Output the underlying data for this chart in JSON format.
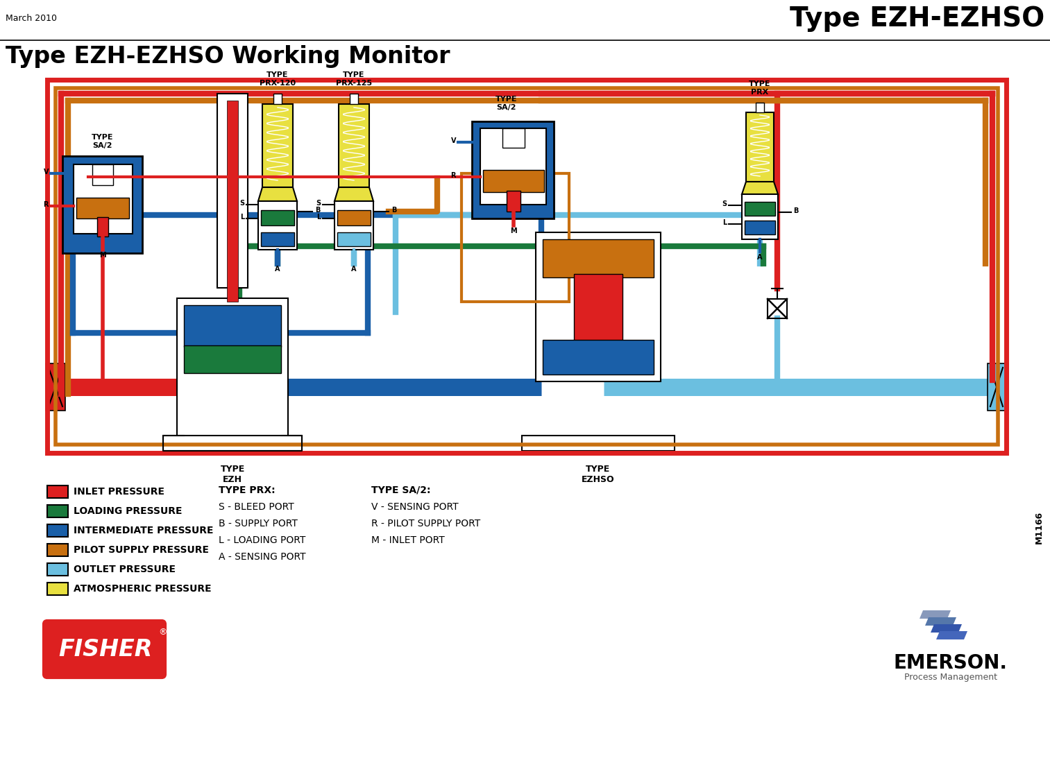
{
  "title_top_right": "Type EZH-EZHSO",
  "title_top_left": "March 2010",
  "title_main": "Type EZH-EZHSO Working Monitor",
  "bg_color": "#ffffff",
  "legend_items": [
    {
      "label": "INLET PRESSURE",
      "color": "#dd2020"
    },
    {
      "label": "LOADING PRESSURE",
      "color": "#1a7a3c"
    },
    {
      "label": "INTERMEDIATE PRESSURE",
      "color": "#1a5fa8"
    },
    {
      "label": "PILOT SUPPLY PRESSURE",
      "color": "#c87010"
    },
    {
      "label": "OUTLET PRESSURE",
      "color": "#6bbfe0"
    },
    {
      "label": "ATMOSPHERIC PRESSURE",
      "color": "#e8e040"
    }
  ],
  "type_prx_text": "TYPE PRX:\nS - BLEED PORT\nB - SUPPLY PORT\nL - LOADING PORT\nA - SENSING PORT",
  "type_sa2_text": "TYPE SA/2:\nV - SENSING PORT\nR - PILOT SUPPLY PORT\nM - INLET PORT",
  "type_ezh_label": "TYPE\nEZH",
  "type_ezhso_label": "TYPE\nEZHSO",
  "fisher_text": "FISHER",
  "emerson_text": "EMERSON.",
  "emerson_sub": "Process Management",
  "ref_number": "M1166",
  "colors": {
    "red": "#dd2020",
    "green": "#1a7a3c",
    "blue": "#1a5fa8",
    "orange": "#c87010",
    "light_blue": "#6bbfe0",
    "yellow": "#e8e040",
    "black": "#000000",
    "white": "#ffffff",
    "gray": "#888888",
    "light_gray": "#cccccc"
  }
}
